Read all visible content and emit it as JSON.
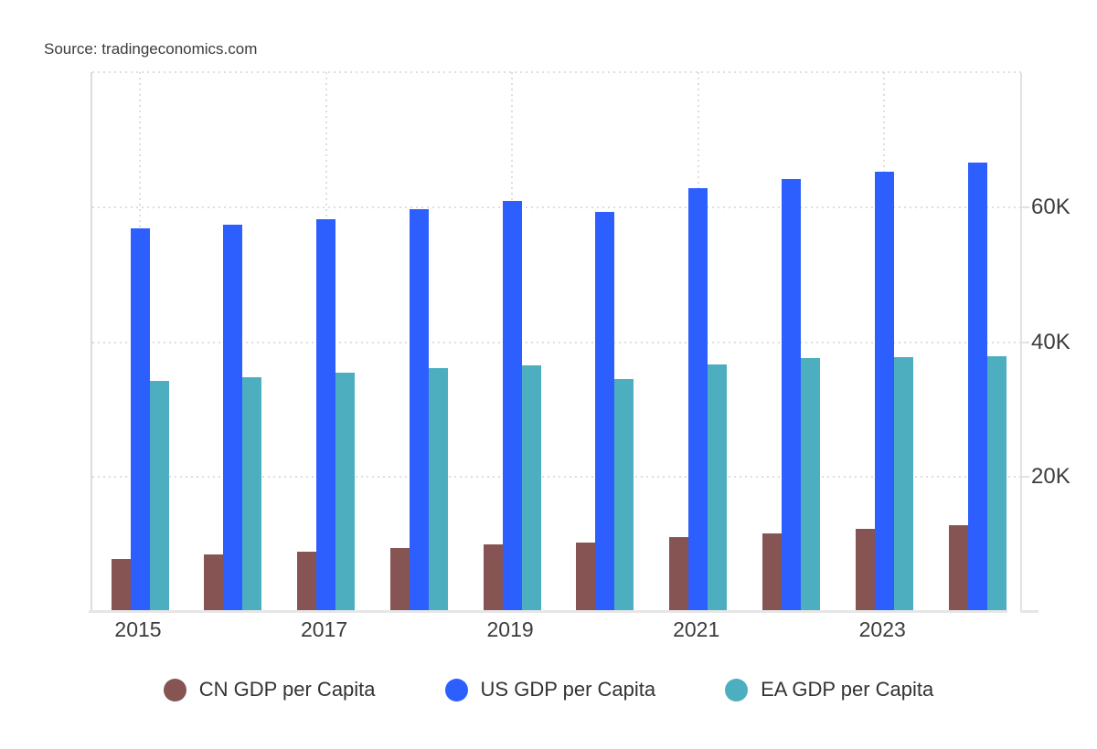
{
  "source_label": "Source: tradingeconomics.com",
  "chart_data": {
    "type": "bar",
    "title": "",
    "xlabel": "",
    "ylabel": "",
    "categories": [
      "2015",
      "2016",
      "2017",
      "2018",
      "2019",
      "2020",
      "2021",
      "2022",
      "2023",
      "2024"
    ],
    "series": [
      {
        "name": "CN GDP per Capita",
        "color": "#875454",
        "values": [
          7900,
          8500,
          8950,
          9450,
          10050,
          10350,
          11150,
          11700,
          12300,
          12800
        ]
      },
      {
        "name": "US GDP per Capita",
        "color": "#2D5FFF",
        "values": [
          56800,
          57350,
          58150,
          59750,
          60900,
          59300,
          62750,
          64100,
          65300,
          66550
        ]
      },
      {
        "name": "EA GDP per Capita",
        "color": "#4DAEC0",
        "values": [
          34200,
          34850,
          35450,
          36100,
          36600,
          34500,
          36650,
          37700,
          37750,
          37850
        ]
      }
    ],
    "y_axis": {
      "side": "right",
      "ylim": [
        0,
        80000
      ],
      "tick_values": [
        20000,
        40000,
        60000
      ],
      "tick_labels": [
        "20K",
        "40K",
        "60K"
      ],
      "grid": "dotted",
      "top_border_value": 80000
    },
    "x_axis": {
      "tick_labels": [
        "2015",
        "2017",
        "2019",
        "2021",
        "2023"
      ],
      "tick_category_indexes": [
        0,
        2,
        4,
        6,
        8
      ],
      "grid": "dotted"
    },
    "legend": {
      "position": "bottom",
      "items": [
        "CN GDP per Capita",
        "US GDP per Capita",
        "EA GDP per Capita"
      ]
    }
  },
  "colors": {
    "background": "#ffffff",
    "grid": "#dedede",
    "axis_line": "#e2e2e2",
    "axis_text": "#3d3d3d",
    "source_text": "#3c3c3c",
    "legend_text": "#333333"
  }
}
